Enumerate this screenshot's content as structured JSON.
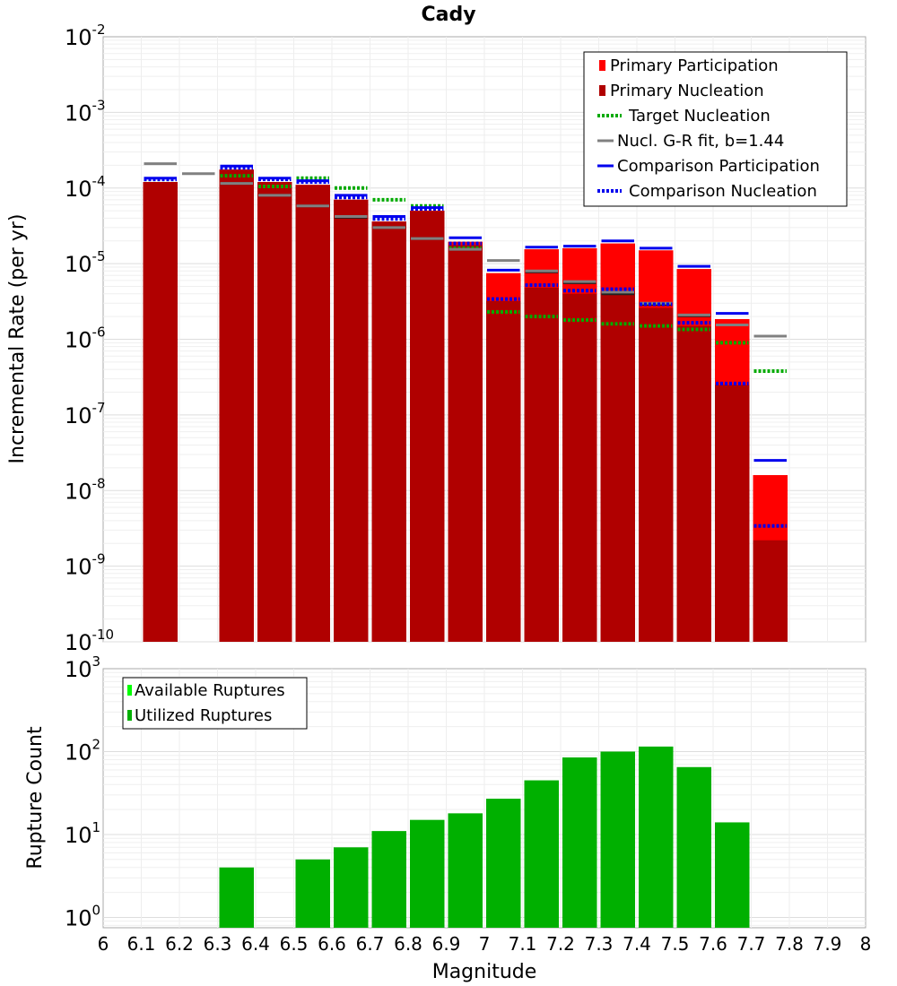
{
  "chart_data": [
    {
      "type": "bar",
      "title": "Cady",
      "xlabel": "",
      "ylabel": "Incremental Rate (per yr)",
      "xlim": [
        6,
        8
      ],
      "ylim": [
        1e-10,
        0.01
      ],
      "yscale": "log",
      "grid": true,
      "legend_position": "top-right",
      "bin_width": 0.1,
      "ytick_labels": [
        {
          "base": "10",
          "exp": "-10",
          "value": 1e-10
        },
        {
          "base": "10",
          "exp": "-9",
          "value": 1e-09
        },
        {
          "base": "10",
          "exp": "-8",
          "value": 1e-08
        },
        {
          "base": "10",
          "exp": "-7",
          "value": 1e-07
        },
        {
          "base": "10",
          "exp": "-6",
          "value": 1e-06
        },
        {
          "base": "10",
          "exp": "-5",
          "value": 1e-05
        },
        {
          "base": "10",
          "exp": "-4",
          "value": 0.0001
        },
        {
          "base": "10",
          "exp": "-3",
          "value": 0.001
        },
        {
          "base": "10",
          "exp": "-2",
          "value": 0.01
        }
      ],
      "bar_series": [
        {
          "name": "Primary Participation",
          "color": "#ff0000",
          "x": [
            6.15,
            6.35,
            6.45,
            6.55,
            6.65,
            6.75,
            6.85,
            6.95,
            7.05,
            7.15,
            7.25,
            7.35,
            7.45,
            7.55,
            7.65,
            7.75
          ],
          "values": [
            0.00012,
            0.000175,
            0.00012,
            0.00011,
            7e-05,
            3.6e-05,
            5e-05,
            1.95e-05,
            7.5e-06,
            1.55e-05,
            1.6e-05,
            1.85e-05,
            1.5e-05,
            8.5e-06,
            1.85e-06,
            1.6e-08
          ]
        },
        {
          "name": "Primary Nucleation",
          "color": "#b00000",
          "x": [
            6.15,
            6.35,
            6.45,
            6.55,
            6.65,
            6.75,
            6.85,
            6.95,
            7.05,
            7.15,
            7.25,
            7.35,
            7.45,
            7.55,
            7.65,
            7.75
          ],
          "values": [
            0.00012,
            0.000175,
            0.00012,
            0.00011,
            7e-05,
            3.6e-05,
            5e-05,
            1.75e-05,
            3.2e-06,
            4.8e-06,
            4e-06,
            4.3e-06,
            2.6e-06,
            1.5e-06,
            2.5e-07,
            2.2e-09
          ]
        }
      ],
      "line_series": [
        {
          "name": "Target Nucleation",
          "color": "#00aa00",
          "style": "dotted",
          "x": [
            6.15,
            6.35,
            6.45,
            6.55,
            6.65,
            6.75,
            6.85,
            6.95,
            7.05,
            7.15,
            7.25,
            7.35,
            7.45,
            7.55,
            7.65,
            7.75
          ],
          "values": [
            0.00013,
            0.000145,
            0.000105,
            0.000135,
            0.0001,
            7e-05,
            5.8e-05,
            1.6e-05,
            2.3e-06,
            2e-06,
            1.8e-06,
            1.6e-06,
            1.5e-06,
            1.35e-06,
            9e-07,
            3.8e-07
          ]
        },
        {
          "name": "Nucl. G-R fit, b=1.44",
          "color": "#808080",
          "style": "solid",
          "x": [
            6.15,
            6.25,
            6.35,
            6.45,
            6.55,
            6.65,
            6.75,
            6.85,
            6.95,
            7.05,
            7.15,
            7.25,
            7.35,
            7.45,
            7.55,
            7.65,
            7.75
          ],
          "values": [
            0.00021,
            0.000155,
            0.000115,
            8e-05,
            5.8e-05,
            4.2e-05,
            3e-05,
            2.15e-05,
            1.55e-05,
            1.1e-05,
            8e-06,
            5.8e-06,
            4.2e-06,
            3e-06,
            2.1e-06,
            1.55e-06,
            1.1e-06
          ]
        },
        {
          "name": "Comparison Participation",
          "color": "#0000ee",
          "style": "solid",
          "x": [
            6.15,
            6.35,
            6.45,
            6.55,
            6.65,
            6.75,
            6.85,
            6.95,
            7.05,
            7.15,
            7.25,
            7.35,
            7.45,
            7.55,
            7.65,
            7.75
          ],
          "values": [
            0.000135,
            0.000195,
            0.000135,
            0.000125,
            8e-05,
            4.2e-05,
            5.5e-05,
            2.2e-05,
            8.2e-06,
            1.65e-05,
            1.7e-05,
            2e-05,
            1.6e-05,
            9.2e-06,
            2.2e-06,
            2.5e-08
          ]
        },
        {
          "name": "Comparison Nucleation",
          "color": "#0000ee",
          "style": "dotted",
          "x": [
            6.15,
            6.35,
            6.45,
            6.55,
            6.65,
            6.75,
            6.85,
            6.95,
            7.05,
            7.15,
            7.25,
            7.35,
            7.45,
            7.55,
            7.65,
            7.75
          ],
          "values": [
            0.00013,
            0.000185,
            0.00013,
            0.00012,
            7.5e-05,
            3.9e-05,
            5.3e-05,
            1.85e-05,
            3.4e-06,
            5.2e-06,
            4.4e-06,
            4.6e-06,
            2.9e-06,
            1.65e-06,
            2.6e-07,
            3.4e-09
          ]
        }
      ],
      "extra_lines": [
        {
          "color": "#222222",
          "style": "solid",
          "x": [
            6.35,
            6.45,
            6.55,
            6.65,
            6.75,
            6.85,
            6.95,
            7.15,
            7.25,
            7.35,
            7.45,
            7.55,
            7.65
          ],
          "values": [
            0.000115,
            8e-05,
            5.8e-05,
            4.1e-05,
            3e-05,
            2.15e-05,
            1.55e-05,
            7.8e-06,
            5.6e-06,
            4e-06,
            2.9e-06,
            2.05e-06,
            1.55e-06
          ]
        }
      ]
    },
    {
      "type": "bar",
      "title": "",
      "xlabel": "Magnitude",
      "ylabel": "Rupture Count",
      "xlim": [
        6,
        8
      ],
      "ylim": [
        0.75,
        1000
      ],
      "yscale": "log",
      "grid": true,
      "legend_position": "top-left",
      "bin_width": 0.1,
      "xtick_labels": [
        "6",
        "6.1",
        "6.2",
        "6.3",
        "6.4",
        "6.5",
        "6.6",
        "6.7",
        "6.8",
        "6.9",
        "7",
        "7.1",
        "7.2",
        "7.3",
        "7.4",
        "7.5",
        "7.6",
        "7.7",
        "7.8",
        "7.9",
        "8"
      ],
      "ytick_labels": [
        {
          "base": "10",
          "exp": "0",
          "value": 1
        },
        {
          "base": "10",
          "exp": "1",
          "value": 10
        },
        {
          "base": "10",
          "exp": "2",
          "value": 100
        },
        {
          "base": "10",
          "exp": "3",
          "value": 1000
        }
      ],
      "legend_entries": [
        {
          "name": "Available Ruptures",
          "color": "#00ff00"
        },
        {
          "name": "Utilized Ruptures",
          "color": "#00b000"
        }
      ],
      "series": [
        {
          "name": "Utilized Ruptures",
          "color": "#00b000",
          "x": [
            6.35,
            6.55,
            6.65,
            6.75,
            6.85,
            6.95,
            7.05,
            7.15,
            7.25,
            7.35,
            7.45,
            7.55,
            7.65
          ],
          "values": [
            4,
            5,
            7,
            11,
            15,
            18,
            27,
            45,
            85,
            100,
            115,
            65,
            14
          ]
        }
      ]
    }
  ]
}
